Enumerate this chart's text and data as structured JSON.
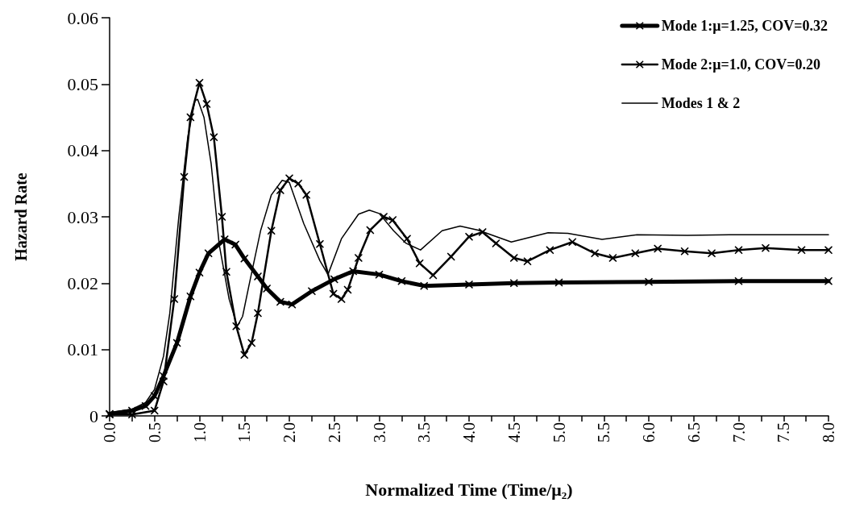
{
  "chart_data": {
    "type": "line",
    "xlabel": "Normalized Time (Time/μ₂)",
    "ylabel": "Hazard Rate",
    "xlim": [
      0,
      8
    ],
    "ylim": [
      0,
      0.06
    ],
    "xticks": [
      {
        "value": 0,
        "label": "0.0"
      },
      {
        "value": 0.25,
        "label": null
      },
      {
        "value": 0.5,
        "label": "0.5"
      },
      {
        "value": 0.75,
        "label": null
      },
      {
        "value": 1,
        "label": "1.0"
      },
      {
        "value": 1.25,
        "label": null
      },
      {
        "value": 1.5,
        "label": "1.5"
      },
      {
        "value": 1.75,
        "label": null
      },
      {
        "value": 2,
        "label": "2.0"
      },
      {
        "value": 2.25,
        "label": null
      },
      {
        "value": 2.5,
        "label": "2.5"
      },
      {
        "value": 2.75,
        "label": null
      },
      {
        "value": 3,
        "label": "3.0"
      },
      {
        "value": 3.25,
        "label": null
      },
      {
        "value": 3.5,
        "label": "3.5"
      },
      {
        "value": 3.75,
        "label": null
      },
      {
        "value": 4,
        "label": "4.0"
      },
      {
        "value": 4.25,
        "label": null
      },
      {
        "value": 4.5,
        "label": "4.5"
      },
      {
        "value": 4.75,
        "label": null
      },
      {
        "value": 5,
        "label": "5.0"
      },
      {
        "value": 5.25,
        "label": null
      },
      {
        "value": 5.5,
        "label": "5.5"
      },
      {
        "value": 5.75,
        "label": null
      },
      {
        "value": 6,
        "label": "6.0"
      },
      {
        "value": 6.25,
        "label": null
      },
      {
        "value": 6.5,
        "label": "6.5"
      },
      {
        "value": 6.75,
        "label": null
      },
      {
        "value": 7,
        "label": "7.0"
      },
      {
        "value": 7.25,
        "label": null
      },
      {
        "value": 7.5,
        "label": "7.5"
      },
      {
        "value": 7.75,
        "label": null
      },
      {
        "value": 8,
        "label": "8.0"
      }
    ],
    "yticks": [
      0,
      0.01,
      0.02,
      0.03,
      0.04,
      0.05,
      0.06
    ],
    "grid": false,
    "legend": "top right",
    "line_style": "solid",
    "series": [
      {
        "name": "Mode 1:μ=1.25, COV=0.32",
        "color": "#000000",
        "marker": "cross",
        "x": [
          0,
          0.25,
          0.4,
          0.5,
          0.6,
          0.75,
          0.9,
          1.0,
          1.1,
          1.28,
          1.4,
          1.5,
          1.65,
          1.75,
          1.9,
          2.03,
          2.25,
          2.5,
          2.71,
          3.0,
          3.25,
          3.5,
          4.0,
          4.5,
          5.0,
          6.0,
          7.0,
          8.0
        ],
        "values": [
          0.0003,
          0.0008,
          0.0015,
          0.003,
          0.006,
          0.011,
          0.018,
          0.0216,
          0.0245,
          0.0266,
          0.0258,
          0.0237,
          0.021,
          0.0192,
          0.0172,
          0.0168,
          0.0188,
          0.0206,
          0.0218,
          0.0213,
          0.0203,
          0.0196,
          0.0198,
          0.02,
          0.0201,
          0.0202,
          0.0203,
          0.0203
        ]
      },
      {
        "name": "Mode 2:μ=1.0, COV=0.20",
        "color": "#000000",
        "marker": "cross",
        "x": [
          0,
          0.25,
          0.5,
          0.6,
          0.72,
          0.83,
          0.9,
          1.0,
          1.08,
          1.16,
          1.25,
          1.3,
          1.41,
          1.5,
          1.58,
          1.65,
          1.8,
          1.9,
          2.0,
          2.1,
          2.19,
          2.34,
          2.49,
          2.58,
          2.65,
          2.77,
          2.9,
          3.05,
          3.15,
          3.31,
          3.45,
          3.6,
          3.8,
          4.0,
          4.15,
          4.3,
          4.5,
          4.65,
          4.9,
          5.15,
          5.4,
          5.6,
          5.85,
          6.1,
          6.4,
          6.7,
          7.0,
          7.3,
          7.7,
          8.0
        ],
        "values": [
          0.0002,
          0.0002,
          0.0008,
          0.0052,
          0.0176,
          0.036,
          0.045,
          0.0502,
          0.047,
          0.042,
          0.03,
          0.0217,
          0.0135,
          0.0092,
          0.011,
          0.0155,
          0.0279,
          0.034,
          0.0358,
          0.035,
          0.0333,
          0.0259,
          0.0184,
          0.0176,
          0.019,
          0.0238,
          0.028,
          0.03,
          0.0295,
          0.0267,
          0.023,
          0.0212,
          0.024,
          0.027,
          0.0277,
          0.026,
          0.0238,
          0.0233,
          0.025,
          0.0262,
          0.0245,
          0.0238,
          0.0245,
          0.0252,
          0.0248,
          0.0245,
          0.025,
          0.0253,
          0.025,
          0.025
        ]
      },
      {
        "name": "Modes 1 & 2",
        "color": "#000000",
        "marker": "none",
        "x": [
          0,
          0.25,
          0.4,
          0.5,
          0.6,
          0.67,
          0.77,
          0.87,
          0.95,
          0.98,
          1.05,
          1.13,
          1.22,
          1.33,
          1.42,
          1.48,
          1.55,
          1.68,
          1.8,
          1.92,
          2.0,
          2.16,
          2.34,
          2.43,
          2.58,
          2.77,
          2.89,
          3.0,
          3.16,
          3.3,
          3.46,
          3.7,
          3.9,
          4.1,
          4.47,
          4.88,
          5.1,
          5.48,
          5.87,
          6.43,
          6.9,
          7.5,
          8.0
        ],
        "values": [
          0.0005,
          0.001,
          0.002,
          0.004,
          0.009,
          0.0155,
          0.03,
          0.042,
          0.0475,
          0.0477,
          0.045,
          0.038,
          0.0258,
          0.0176,
          0.0135,
          0.015,
          0.0196,
          0.0279,
          0.0333,
          0.0355,
          0.0352,
          0.029,
          0.0234,
          0.0213,
          0.0267,
          0.0304,
          0.031,
          0.0305,
          0.0279,
          0.026,
          0.025,
          0.0279,
          0.0286,
          0.028,
          0.0262,
          0.0276,
          0.0275,
          0.0266,
          0.0273,
          0.0272,
          0.0273,
          0.0273,
          0.0273
        ]
      }
    ]
  }
}
